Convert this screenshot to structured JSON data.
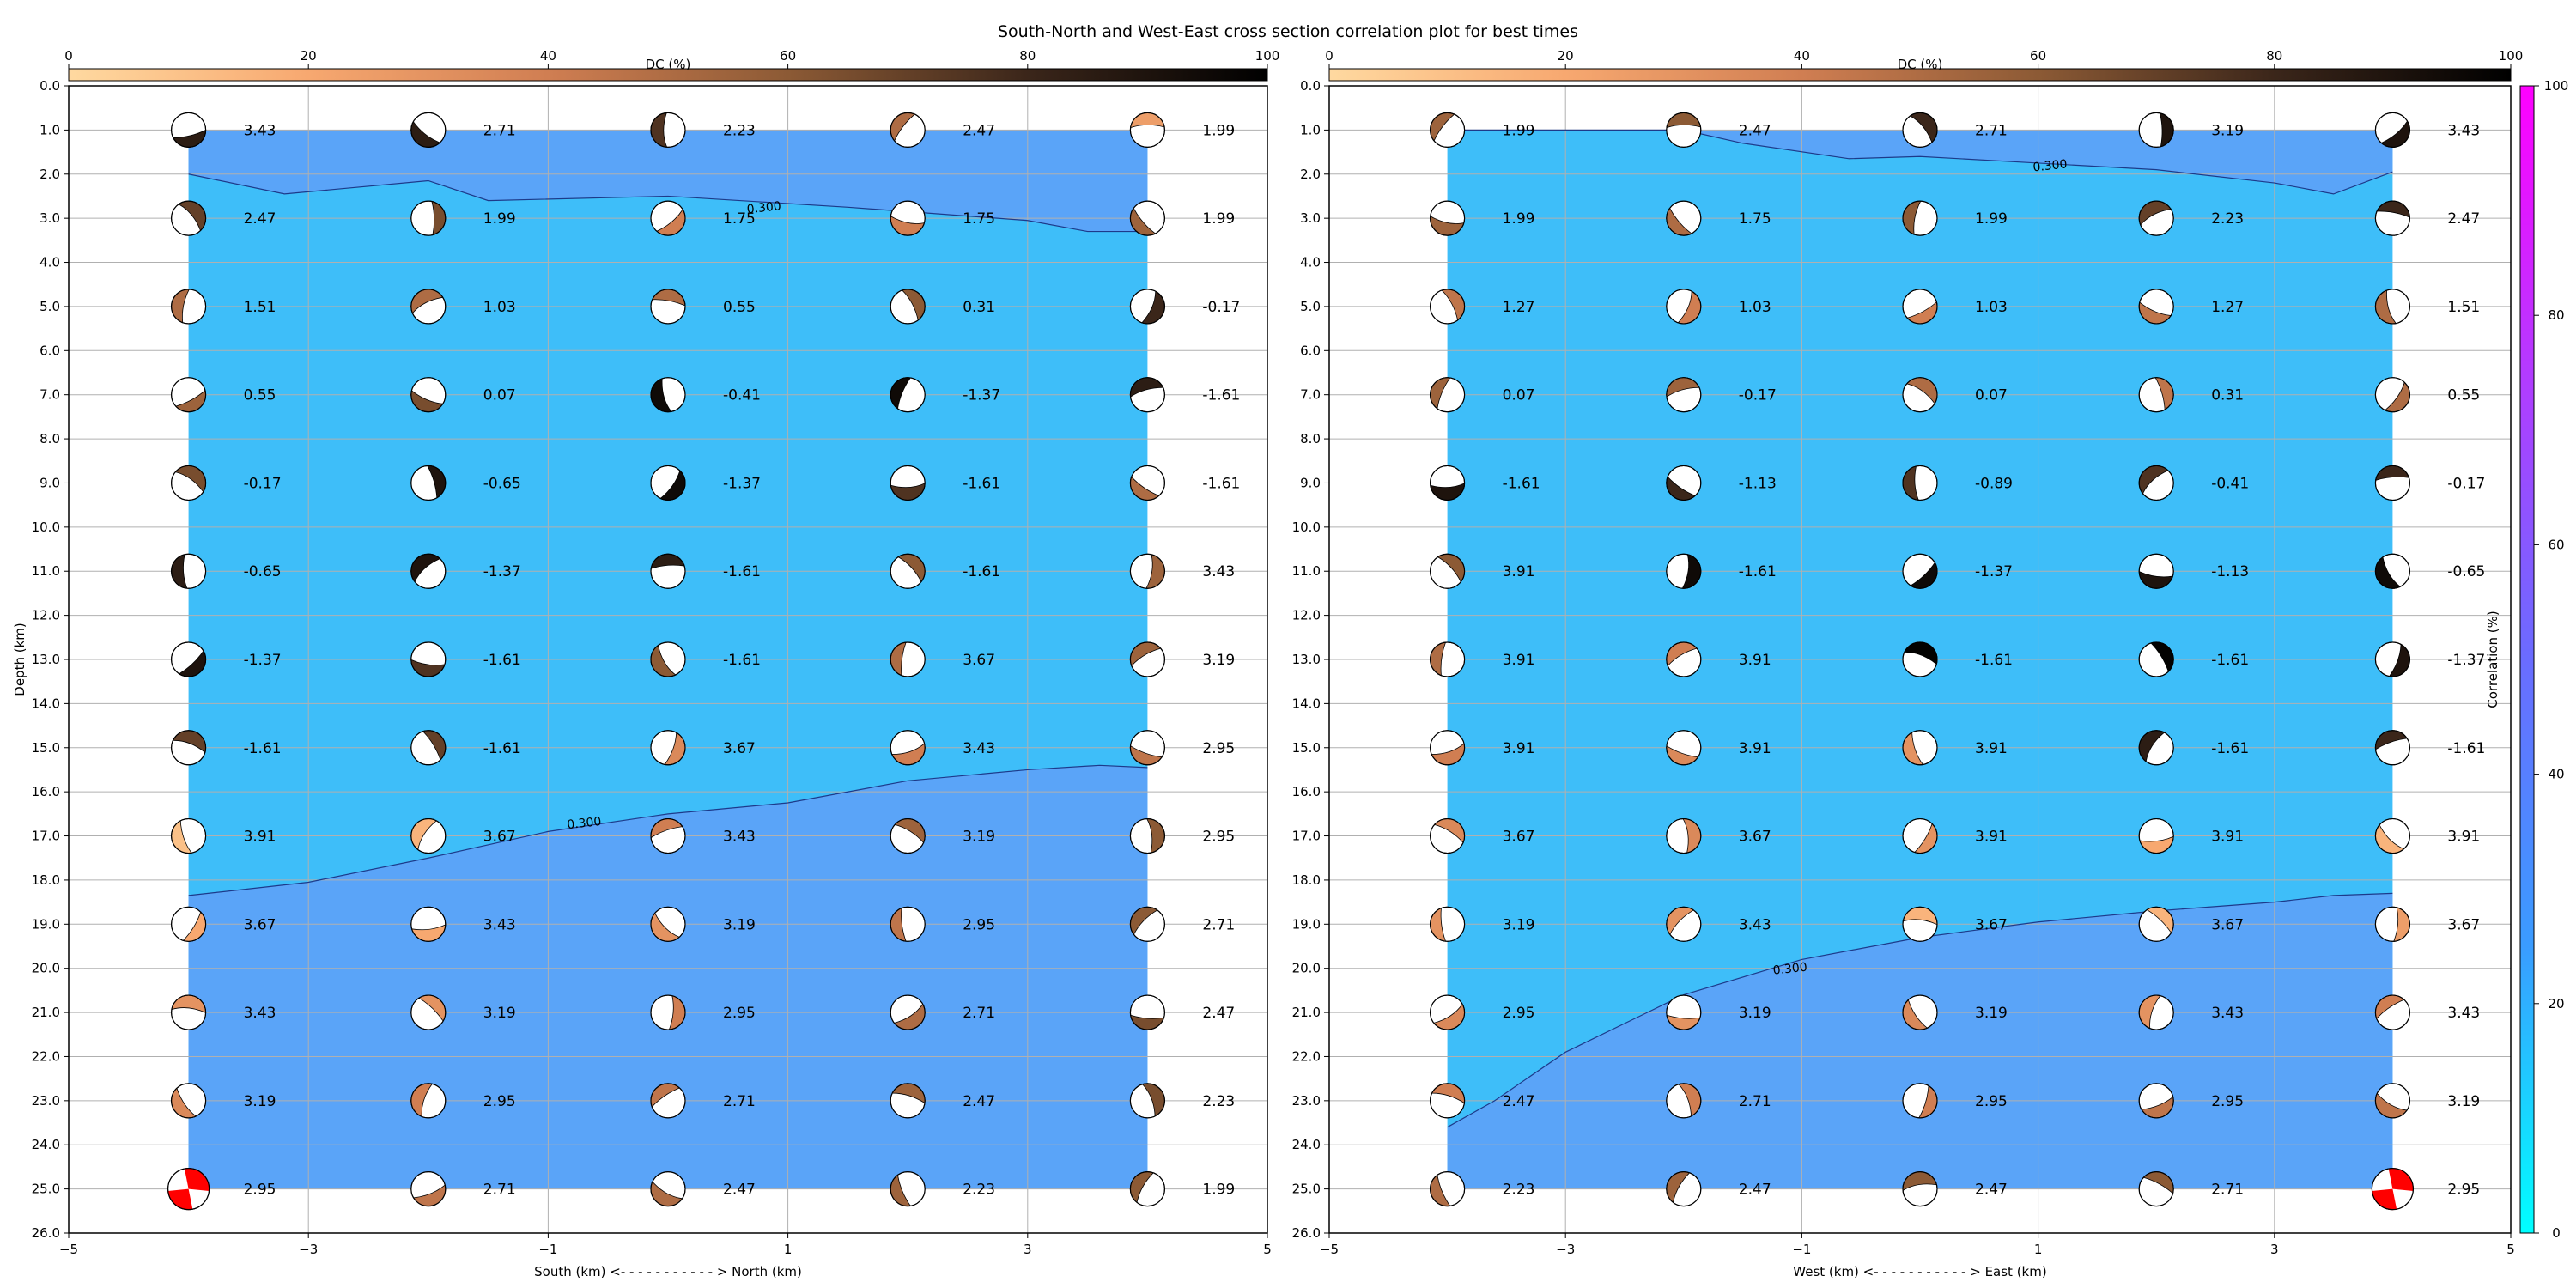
{
  "title": "South-North and West-East cross section correlation plot for best times",
  "colorbars": {
    "dc": {
      "label": "DC (%)",
      "ticks": [
        0,
        20,
        40,
        60,
        80,
        100
      ],
      "colors": [
        "#ffd9a0",
        "#f7a870",
        "#d07e52",
        "#8c5a35",
        "#3b261a",
        "#000000"
      ]
    },
    "correlation": {
      "label": "Correlation (%)",
      "ticks": [
        0,
        20,
        40,
        60,
        80,
        100
      ],
      "colors": [
        "#00ffff",
        "#3a9cff",
        "#6a6cff",
        "#b33bff",
        "#ff00ff"
      ]
    }
  },
  "colors": {
    "field_low": "#3ebef9",
    "field_high": "#5aa4f8",
    "best": "#ff0000",
    "contour": "#1d3a8a"
  },
  "chart_data": [
    {
      "type": "heatmap",
      "name": "south-north",
      "xlabel": "South (km) <- - - - - - - - - - - > North (km)",
      "ylabel": "Depth (km)",
      "xlim": [
        -5,
        5
      ],
      "ylim": [
        26,
        0
      ],
      "xticks": [
        -5,
        -3,
        -1,
        1,
        3,
        5
      ],
      "yticks": [
        0.0,
        1.0,
        2.0,
        3.0,
        4.0,
        5.0,
        6.0,
        7.0,
        8.0,
        9.0,
        10.0,
        11.0,
        12.0,
        13.0,
        14.0,
        15.0,
        16.0,
        17.0,
        18.0,
        19.0,
        20.0,
        21.0,
        22.0,
        23.0,
        24.0,
        25.0,
        26.0
      ],
      "grid": true,
      "x": [
        -4,
        -2,
        0,
        2,
        4
      ],
      "depths": [
        1,
        3,
        5,
        7,
        9,
        11,
        13,
        15,
        17,
        19,
        21,
        23,
        25
      ],
      "values": [
        [
          "3.43",
          "2.71",
          "2.23",
          "2.47",
          "1.99"
        ],
        [
          "2.47",
          "1.99",
          "1.75",
          "1.75",
          "1.99"
        ],
        [
          "1.51",
          "1.03",
          "0.55",
          "0.31",
          "-0.17"
        ],
        [
          "0.55",
          "0.07",
          "-0.41",
          "-1.37",
          "-1.61"
        ],
        [
          "-0.17",
          "-0.65",
          "-1.37",
          "-1.61",
          "-1.61"
        ],
        [
          "-0.65",
          "-1.37",
          "-1.61",
          "-1.61",
          "3.43"
        ],
        [
          "-1.37",
          "-1.61",
          "-1.61",
          "3.67",
          "3.19"
        ],
        [
          "-1.61",
          "-1.61",
          "3.67",
          "3.43",
          "2.95"
        ],
        [
          "3.91",
          "3.67",
          "3.43",
          "3.19",
          "2.95"
        ],
        [
          "3.67",
          "3.43",
          "3.19",
          "2.95",
          "2.71"
        ],
        [
          "3.43",
          "3.19",
          "2.95",
          "2.71",
          "2.47"
        ],
        [
          "3.19",
          "2.95",
          "2.71",
          "2.47",
          "2.23"
        ],
        [
          "2.95",
          "2.71",
          "2.47",
          "2.23",
          "1.99"
        ]
      ],
      "dc_percent": [
        [
          85,
          85,
          75,
          50,
          25
        ],
        [
          70,
          65,
          40,
          40,
          55
        ],
        [
          50,
          50,
          50,
          60,
          80
        ],
        [
          55,
          65,
          95,
          95,
          85
        ],
        [
          65,
          90,
          95,
          75,
          50
        ],
        [
          85,
          90,
          85,
          60,
          55
        ],
        [
          90,
          75,
          60,
          50,
          55
        ],
        [
          70,
          70,
          35,
          40,
          45
        ],
        [
          10,
          15,
          40,
          55,
          60
        ],
        [
          20,
          20,
          30,
          45,
          60
        ],
        [
          30,
          30,
          40,
          50,
          65
        ],
        [
          35,
          40,
          45,
          55,
          65
        ],
        [
          "best",
          45,
          50,
          55,
          60
        ]
      ],
      "contours": [
        {
          "level": "0.300",
          "x": [
            -4,
            -3.2,
            -2,
            -1.5,
            0,
            1.5,
            3,
            3.5,
            4
          ],
          "y": [
            2.0,
            2.45,
            2.15,
            2.6,
            2.5,
            2.75,
            3.05,
            3.3,
            3.3
          ],
          "label_at": [
            0.8,
            2.75
          ]
        },
        {
          "level": "0.300",
          "x": [
            -4,
            -3,
            -2,
            -1,
            0,
            1,
            2,
            3,
            3.6,
            4
          ],
          "y": [
            18.35,
            18.05,
            17.5,
            16.9,
            16.5,
            16.25,
            15.75,
            15.5,
            15.4,
            15.45
          ],
          "label_at": [
            -0.7,
            16.7
          ]
        }
      ]
    },
    {
      "type": "heatmap",
      "name": "west-east",
      "xlabel": "West (km) <- - - - - - - - - - - > East (km)",
      "ylabel": "",
      "xlim": [
        -5,
        5
      ],
      "ylim": [
        26,
        0
      ],
      "xticks": [
        -5,
        -3,
        -1,
        1,
        3,
        5
      ],
      "yticks": [
        0.0,
        1.0,
        2.0,
        3.0,
        4.0,
        5.0,
        6.0,
        7.0,
        8.0,
        9.0,
        10.0,
        11.0,
        12.0,
        13.0,
        14.0,
        15.0,
        16.0,
        17.0,
        18.0,
        19.0,
        20.0,
        21.0,
        22.0,
        23.0,
        24.0,
        25.0,
        26.0
      ],
      "grid": true,
      "x": [
        -4,
        -2,
        0,
        2,
        4
      ],
      "depths": [
        1,
        3,
        5,
        7,
        9,
        11,
        13,
        15,
        17,
        19,
        21,
        23,
        25
      ],
      "values": [
        [
          "1.99",
          "2.47",
          "2.71",
          "3.19",
          "3.43"
        ],
        [
          "1.99",
          "1.75",
          "1.99",
          "2.23",
          "2.47"
        ],
        [
          "1.27",
          "1.03",
          "1.03",
          "1.27",
          "1.51"
        ],
        [
          "0.07",
          "-0.17",
          "0.07",
          "0.31",
          "0.55"
        ],
        [
          "-1.61",
          "-1.13",
          "-0.89",
          "-0.41",
          "-0.17"
        ],
        [
          "3.91",
          "-1.61",
          "-1.37",
          "-1.13",
          "-0.65"
        ],
        [
          "3.91",
          "3.91",
          "-1.61",
          "-1.61",
          "-1.37"
        ],
        [
          "3.91",
          "3.91",
          "3.91",
          "-1.61",
          "-1.61"
        ],
        [
          "3.67",
          "3.67",
          "3.91",
          "3.91",
          "3.91"
        ],
        [
          "3.19",
          "3.43",
          "3.67",
          "3.67",
          "3.67"
        ],
        [
          "2.95",
          "3.19",
          "3.19",
          "3.43",
          "3.43"
        ],
        [
          "2.47",
          "2.71",
          "2.95",
          "2.95",
          "3.19"
        ],
        [
          "2.23",
          "2.47",
          "2.47",
          "2.71",
          "2.95"
        ]
      ],
      "dc_percent": [
        [
          55,
          60,
          80,
          90,
          90
        ],
        [
          55,
          50,
          60,
          70,
          80
        ],
        [
          45,
          40,
          40,
          45,
          50
        ],
        [
          55,
          55,
          50,
          45,
          50
        ],
        [
          90,
          80,
          75,
          75,
          80
        ],
        [
          60,
          95,
          95,
          90,
          95
        ],
        [
          50,
          40,
          99,
          99,
          90
        ],
        [
          40,
          35,
          30,
          85,
          80
        ],
        [
          35,
          35,
          30,
          20,
          15
        ],
        [
          30,
          30,
          15,
          15,
          25
        ],
        [
          35,
          30,
          35,
          30,
          40
        ],
        [
          40,
          40,
          40,
          45,
          45
        ],
        [
          50,
          55,
          60,
          60,
          "best"
        ]
      ],
      "contours": [
        {
          "level": "0.300",
          "x": [
            -4,
            -2,
            -1.5,
            -0.6,
            0,
            1,
            2,
            3,
            3.5,
            4
          ],
          "y": [
            1.0,
            1.0,
            1.3,
            1.65,
            1.6,
            1.75,
            1.9,
            2.2,
            2.45,
            1.95
          ],
          "label_at": [
            1.1,
            1.8
          ]
        },
        {
          "level": "0.300",
          "x": [
            -4,
            -3.6,
            -3,
            -2,
            -1,
            0,
            1,
            2,
            3,
            3.5,
            4
          ],
          "y": [
            23.6,
            23.0,
            21.9,
            20.6,
            19.8,
            19.3,
            18.95,
            18.7,
            18.5,
            18.35,
            18.3
          ],
          "label_at": [
            -1.1,
            20.0
          ]
        }
      ]
    }
  ]
}
